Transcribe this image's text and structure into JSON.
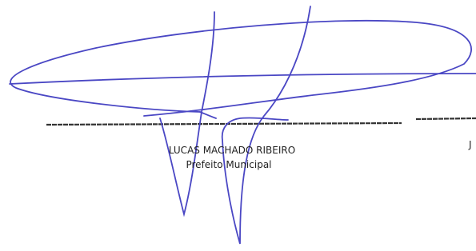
{
  "signature": {
    "name": "LUCAS MACHADO RIBEIRO",
    "role": "Prefeito Municipal"
  },
  "right_fragment": "J"
}
